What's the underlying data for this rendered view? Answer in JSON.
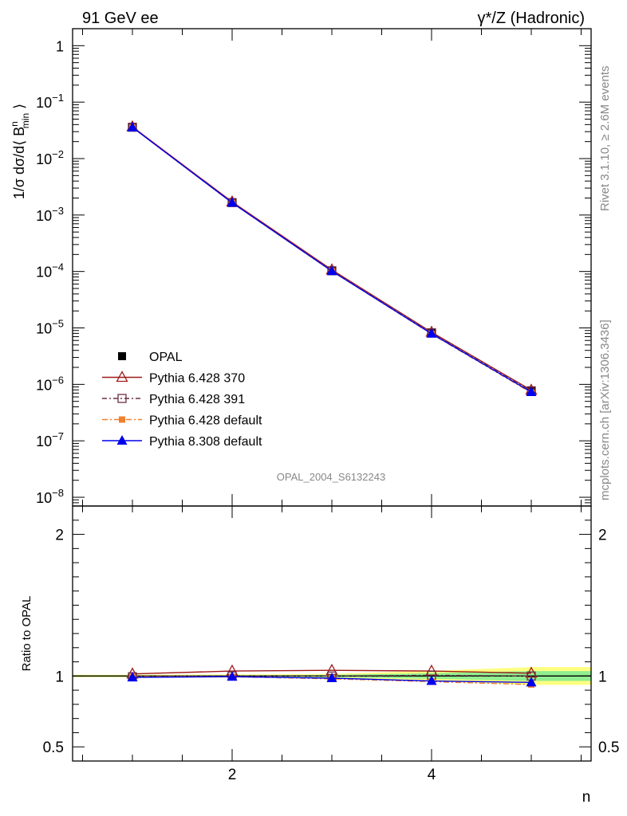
{
  "header": {
    "left": "91 GeV ee",
    "right": "γ*/Z (Hadronic)"
  },
  "side_labels": {
    "rivet": "Rivet 3.1.10, ≥ 2.6M events",
    "mcplots": "mcplots.cern.ch [arXiv:1306.3436]"
  },
  "watermark": "OPAL_2004_S6132243",
  "chart_data": [
    {
      "type": "line",
      "panel": "main",
      "ylabel_parts": {
        "prefix": "1/σ dσ/d⟨ B",
        "sup": "n",
        "sub": "min",
        "suffix": " ⟩"
      },
      "yscale": "log",
      "xlim": [
        0.4,
        5.6
      ],
      "ylim": [
        7e-09,
        2.0
      ],
      "yticks": [
        {
          "value": 1,
          "base": "1",
          "exp": ""
        },
        {
          "value": 0.1,
          "base": "10",
          "exp": "−1"
        },
        {
          "value": 0.01,
          "base": "10",
          "exp": "−2"
        },
        {
          "value": 0.001,
          "base": "10",
          "exp": "−3"
        },
        {
          "value": 0.0001,
          "base": "10",
          "exp": "−4"
        },
        {
          "value": 1e-05,
          "base": "10",
          "exp": "−5"
        },
        {
          "value": 1e-06,
          "base": "10",
          "exp": "−6"
        },
        {
          "value": 1e-07,
          "base": "10",
          "exp": "−7"
        },
        {
          "value": 1e-08,
          "base": "10",
          "exp": "−8"
        }
      ],
      "x": [
        1,
        2,
        3,
        4,
        5
      ],
      "legend_position": "lower-left",
      "series": [
        {
          "name": "OPAL",
          "color": "#000000",
          "marker": "filled-square",
          "dash": "",
          "values": [
            0.036,
            0.00165,
            0.000103,
            8.1e-06,
            7.6e-07
          ]
        },
        {
          "name": "Pythia 6.428 370",
          "color": "#a01818",
          "marker": "open-triangle",
          "dash": "",
          "values": [
            0.0366,
            0.00171,
            0.000107,
            8.4e-06,
            7.9e-07
          ]
        },
        {
          "name": "Pythia 6.428 391",
          "color": "#6b2f45",
          "marker": "open-square",
          "dash": "6,3,2,3",
          "values": [
            0.0359,
            0.00166,
            0.000103,
            8.2e-06,
            7.7e-07
          ]
        },
        {
          "name": "Pythia 6.428 default",
          "color": "#f08030",
          "marker": "filled-square-small",
          "dash": "7,3,2,3",
          "values": [
            0.0358,
            0.00164,
            0.000101,
            7.8e-06,
            7.1e-07
          ]
        },
        {
          "name": "Pythia 8.308 default",
          "color": "#0000ee",
          "marker": "filled-triangle",
          "dash": "",
          "values": [
            0.0357,
            0.00165,
            0.0001015,
            7.9e-06,
            7.3e-07
          ]
        }
      ]
    },
    {
      "type": "line",
      "panel": "ratio",
      "ylabel": "Ratio to OPAL",
      "xlabel": "n",
      "xlim": [
        0.4,
        5.6
      ],
      "ylim": [
        0.4,
        2.2
      ],
      "yticks": [
        {
          "value": 0.5,
          "label": "0.5"
        },
        {
          "value": 1,
          "label": "1"
        },
        {
          "value": 2,
          "label": "2"
        }
      ],
      "xticks": [
        {
          "value": 2,
          "label": "2"
        },
        {
          "value": 4,
          "label": "4"
        }
      ],
      "x": [
        1,
        2,
        3,
        4,
        5
      ],
      "band": {
        "outer_color": "#ffff80",
        "inner_color": "#90ee90",
        "half_width": [
          0.005,
          0.006,
          0.008,
          0.02,
          0.035
        ]
      },
      "series": [
        {
          "name": "Pythia 6.428 370",
          "values": [
            1.015,
            1.035,
            1.04,
            1.035,
            1.02
          ]
        },
        {
          "name": "Pythia 6.428 391",
          "values": [
            0.995,
            1.0,
            1.0,
            1.005,
            1.0
          ]
        },
        {
          "name": "Pythia 6.428 default",
          "values": [
            0.995,
            0.995,
            0.98,
            0.96,
            0.94
          ]
        },
        {
          "name": "Pythia 8.308 default",
          "values": [
            0.99,
            0.995,
            0.985,
            0.965,
            0.955
          ]
        }
      ]
    }
  ]
}
